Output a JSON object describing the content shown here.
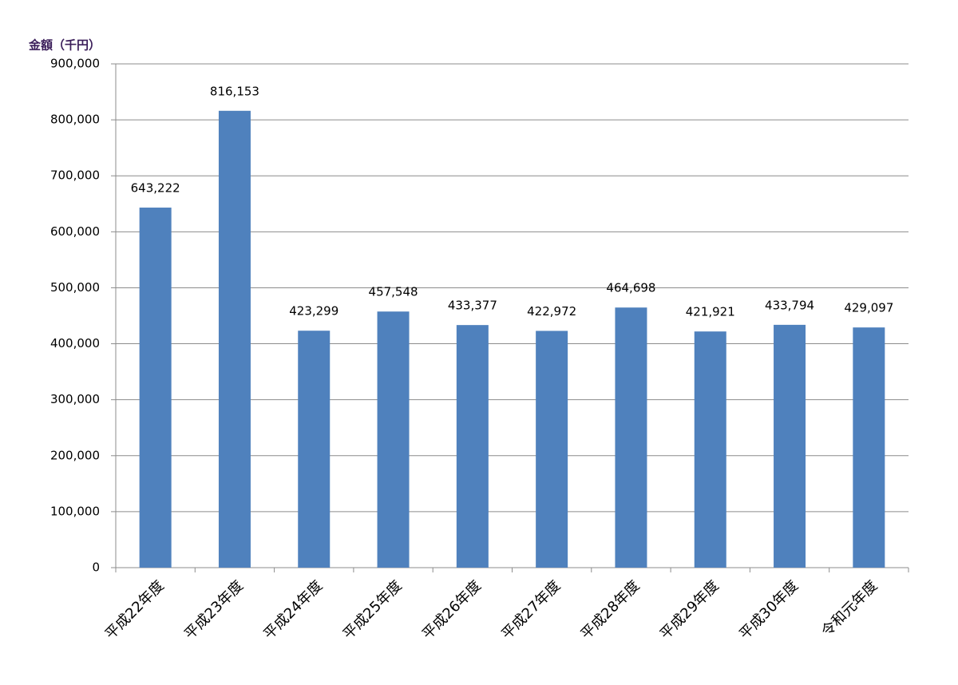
{
  "chart_data": {
    "type": "bar",
    "y_axis_label": "金額（千円）",
    "categories": [
      "平成22年度",
      "平成23年度",
      "平成24年度",
      "平成25年度",
      "平成26年度",
      "平成27年度",
      "平成28年度",
      "平成29年度",
      "平成30年度",
      "令和元年度"
    ],
    "values": [
      643222,
      816153,
      423299,
      457548,
      433377,
      422972,
      464698,
      421921,
      433794,
      429097
    ],
    "value_labels": [
      "643,222",
      "816,153",
      "423,299",
      "457,548",
      "433,377",
      "422,972",
      "464,698",
      "421,921",
      "433,794",
      "429,097"
    ],
    "color": "#4f81bd",
    "ylim": [
      0,
      900000
    ],
    "yticks": [
      0,
      {
        "value": 100000,
        "label": "100,000"
      },
      {
        "value": 200000,
        "label": "200,000"
      },
      {
        "value": 300000,
        "label": "300,000"
      },
      {
        "value": 400000,
        "label": "400,000"
      },
      {
        "value": 500000,
        "label": "500,000"
      },
      {
        "value": 600000,
        "label": "600,000"
      },
      {
        "value": 700000,
        "label": "700,000"
      },
      {
        "value": 800000,
        "label": "800,000"
      },
      {
        "value": 900000,
        "label": "900,000"
      }
    ],
    "grid": true
  }
}
